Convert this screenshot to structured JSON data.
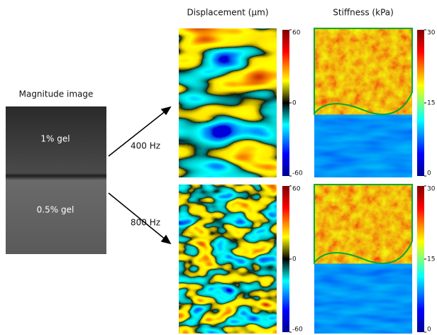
{
  "magnitude": {
    "title": "Magnitude image",
    "labels": [
      "1% gel",
      "0.5% gel"
    ]
  },
  "frequencies": [
    "400 Hz",
    "800 Hz"
  ],
  "maps": [
    {
      "title": "Displacement (µm)",
      "colorbar_ticks": [
        60,
        0,
        -60
      ]
    },
    {
      "title": "Stiffness (kPa)",
      "colorbar_ticks": [
        30,
        15,
        0
      ]
    }
  ]
}
